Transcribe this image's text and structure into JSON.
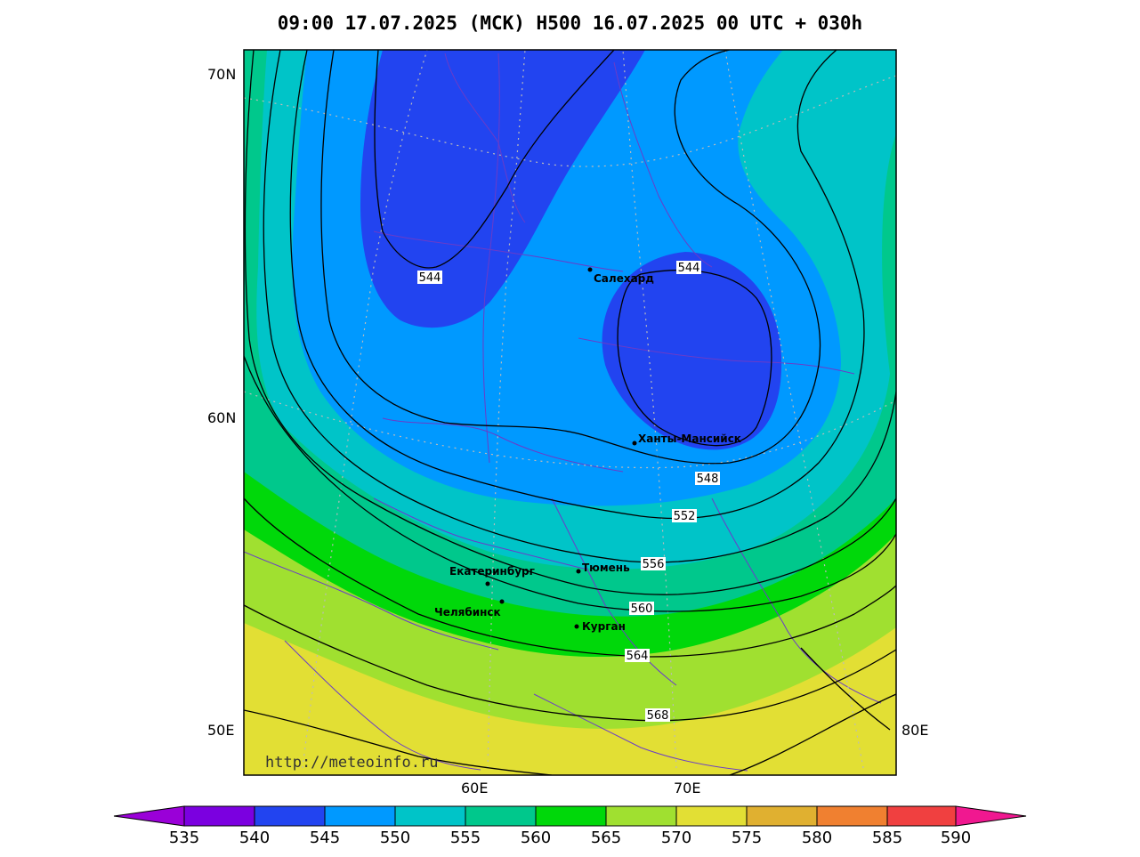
{
  "title": "09:00 17.07.2025 (МСК) H500  16.07.2025 00 UTC + 030h",
  "url_watermark": "http://meteoinfo.ru",
  "lat_labels": [
    "70N",
    "60N",
    "50E",
    "80E"
  ],
  "lon_labels": [
    "60E",
    "70E"
  ],
  "contour_labels": [
    "544",
    "544",
    "548",
    "552",
    "556",
    "560",
    "564",
    "568"
  ],
  "cities": [
    {
      "name": "Салехард"
    },
    {
      "name": "Ханты-Мансийск"
    },
    {
      "name": "Екатеринбург"
    },
    {
      "name": "Челябинск"
    },
    {
      "name": "Тюмень"
    },
    {
      "name": "Курган"
    }
  ],
  "colorbar": {
    "labels": [
      "535",
      "540",
      "545",
      "550",
      "555",
      "560",
      "565",
      "570",
      "575",
      "580",
      "585",
      "590"
    ],
    "colors": [
      "#9a00d8",
      "#7b00e0",
      "#2244f0",
      "#0099ff",
      "#00c8c8",
      "#00d08a",
      "#00dd00",
      "#a0e030",
      "#e0e030",
      "#e0b030",
      "#f08030",
      "#f04040",
      "#f01890"
    ]
  }
}
